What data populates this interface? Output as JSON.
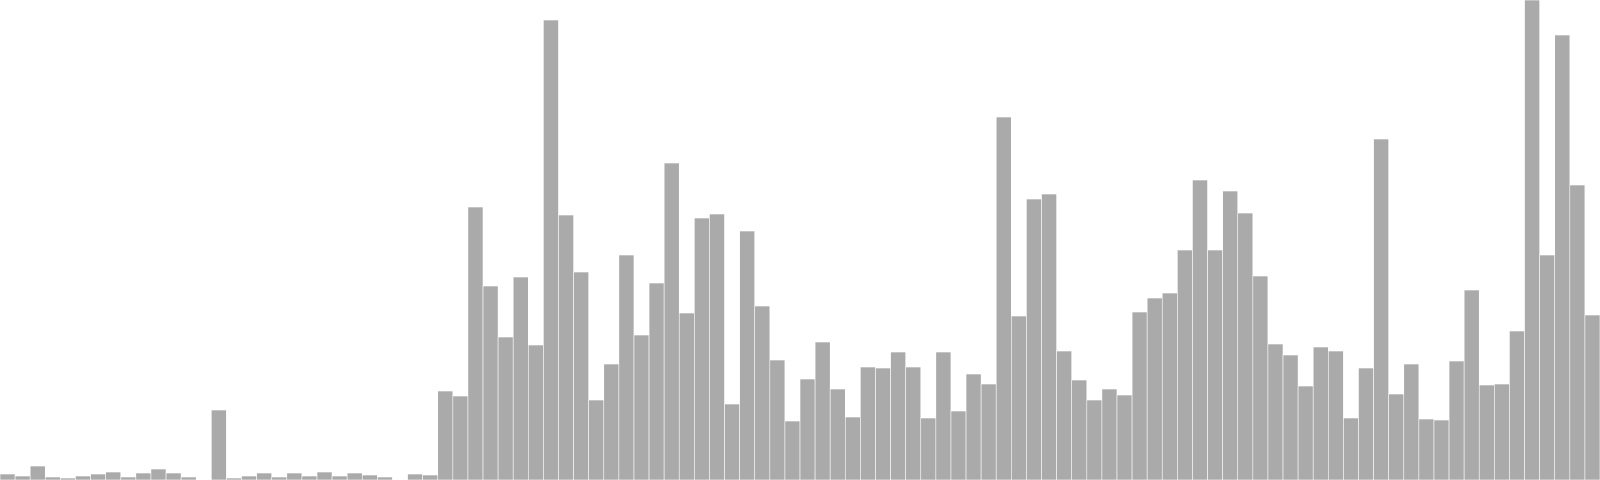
{
  "chart_data": {
    "type": "bar",
    "title": "",
    "xlabel": "",
    "ylabel": "",
    "ylim": [
      0,
      480
    ],
    "grid": false,
    "legend": "none",
    "bar_color": "#aaaaaa",
    "bar_edge_color": "#ffffff",
    "values": [
      6,
      4,
      14,
      3,
      2,
      4,
      6,
      8,
      3,
      7,
      11,
      7,
      3,
      0,
      70,
      2,
      4,
      7,
      3,
      7,
      4,
      8,
      4,
      7,
      5,
      3,
      0,
      6,
      5,
      89,
      84,
      273,
      194,
      143,
      203,
      135,
      460,
      265,
      208,
      80,
      116,
      225,
      145,
      197,
      317,
      167,
      262,
      266,
      76,
      249,
      174,
      120,
      59,
      101,
      138,
      91,
      63,
      113,
      112,
      128,
      113,
      62,
      128,
      69,
      106,
      96,
      363,
      164,
      281,
      286,
      129,
      100,
      80,
      91,
      85,
      168,
      182,
      187,
      230,
      300,
      230,
      289,
      267,
      204,
      136,
      125,
      94,
      133,
      129,
      62,
      112,
      341,
      86,
      116,
      61,
      60,
      119,
      190,
      95,
      96,
      149,
      480,
      225,
      445,
      295,
      165
    ]
  }
}
